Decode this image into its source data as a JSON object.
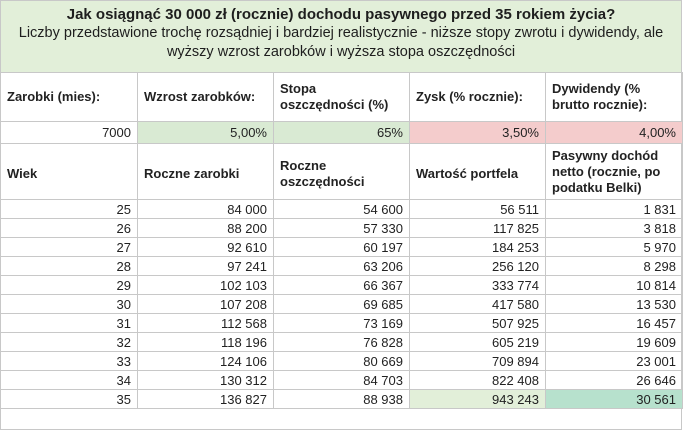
{
  "header": {
    "title": "Jak osiągnąć 30 000 zł (rocznie) dochodu pasywnego przed 35 rokiem życia?",
    "subtitle_line1": "Liczby przedstawione trochę rozsądniej i bardziej realistycznie - niższe stopy zwrotu i dywidendy, ale",
    "subtitle_line2": "wyższy wzrost zarobków i wyższa stopa oszczędności"
  },
  "inputs": {
    "labels": [
      "Zarobki (mies):",
      "Wzrost zarobków:",
      "Stopa oszczędności (%)",
      "Zysk (% rocznie):",
      "Dywidendy (% brutto rocznie):"
    ],
    "values": [
      "7000",
      "5,00%",
      "65%",
      "3,50%",
      "4,00%"
    ],
    "colors": {
      "growth": "#d9ead3",
      "savings": "#d9ead3",
      "profit": "#f4cccc",
      "dividends": "#f4cccc"
    }
  },
  "table": {
    "columns": [
      "Wiek",
      "Roczne zarobki",
      "Roczne oszczędności",
      "Wartość portfela",
      "Pasywny dochód netto (rocznie, po podatku Belki)"
    ],
    "rows": [
      [
        "25",
        "84 000",
        "54 600",
        "56 511",
        "1 831"
      ],
      [
        "26",
        "88 200",
        "57 330",
        "117 825",
        "3 818"
      ],
      [
        "27",
        "92 610",
        "60 197",
        "184 253",
        "5 970"
      ],
      [
        "28",
        "97 241",
        "63 206",
        "256 120",
        "8 298"
      ],
      [
        "29",
        "102 103",
        "66 367",
        "333 774",
        "10 814"
      ],
      [
        "30",
        "107 208",
        "69 685",
        "417 580",
        "13 530"
      ],
      [
        "31",
        "112 568",
        "73 169",
        "507 925",
        "16 457"
      ],
      [
        "32",
        "118 196",
        "76 828",
        "605 219",
        "19 609"
      ],
      [
        "33",
        "124 106",
        "80 669",
        "709 894",
        "23 001"
      ],
      [
        "34",
        "130 312",
        "84 703",
        "822 408",
        "26 646"
      ],
      [
        "35",
        "136 827",
        "88 938",
        "943 243",
        "30 561"
      ]
    ],
    "highlight_colors": {
      "portfolio_final": "#e2efd9",
      "income_final": "#b7e1cd"
    }
  }
}
